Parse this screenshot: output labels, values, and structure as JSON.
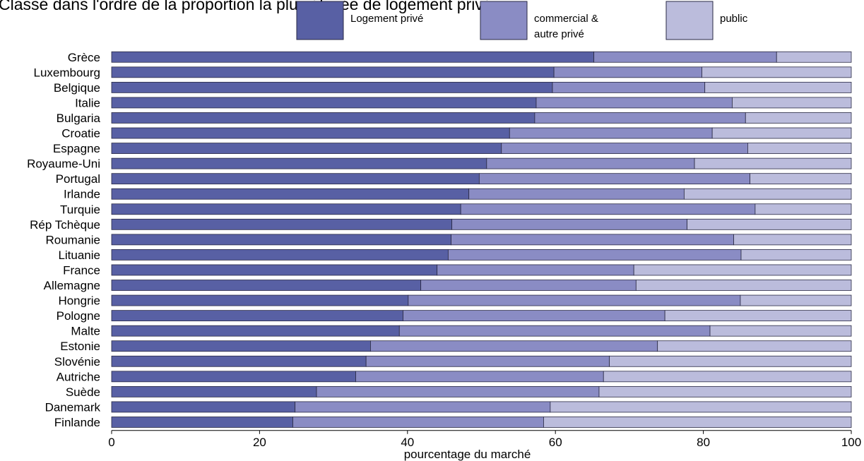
{
  "chart_data": {
    "type": "bar",
    "orientation": "horizontal",
    "stacked": true,
    "title": "Classé dans l'ordre de la proportion la plus élevée de logement privé",
    "xlabel": "pourcentage du marché",
    "ylabel": "",
    "xlim": [
      0,
      100
    ],
    "xticks": [
      "0",
      "20",
      "40",
      "60",
      "80",
      "100"
    ],
    "grid": false,
    "legend_placement": "top",
    "categories": [
      "Grèce",
      "Luxembourg",
      "Belgique",
      "Italie",
      "Bulgaria",
      "Croatie",
      "Espagne",
      "Royaume-Uni",
      "Portugal",
      "Irlande",
      "Turquie",
      "Rép Tchèque",
      "Roumanie",
      "Lituanie",
      "France",
      "Allemagne",
      "Hongrie",
      "Pologne",
      "Malte",
      "Estonie",
      "Slovénie",
      "Autriche",
      "Suède",
      "Danemark",
      "Finlande"
    ],
    "series": [
      {
        "name": "Logement privé",
        "color": "#5860a4",
        "values": [
          65.2,
          59.8,
          59.6,
          57.4,
          57.2,
          53.8,
          52.7,
          50.7,
          49.7,
          48.3,
          47.2,
          46.0,
          45.9,
          45.5,
          44.0,
          41.8,
          40.1,
          39.4,
          38.9,
          35.0,
          34.4,
          33.0,
          27.7,
          24.8,
          24.5
        ]
      },
      {
        "name": "commercial & autre privé",
        "color": "#8a8cc4",
        "values": [
          24.7,
          20.0,
          20.6,
          26.5,
          28.5,
          27.4,
          33.3,
          28.1,
          36.6,
          29.1,
          39.8,
          31.8,
          38.2,
          39.6,
          26.6,
          29.1,
          44.9,
          35.4,
          42.0,
          38.8,
          32.9,
          33.5,
          38.2,
          34.5,
          33.9
        ]
      },
      {
        "name": "public",
        "color": "#bbbcdc",
        "values": [
          10.1,
          20.2,
          19.8,
          16.1,
          14.3,
          18.8,
          14.0,
          21.2,
          13.7,
          22.6,
          13.0,
          22.2,
          15.9,
          14.9,
          29.4,
          29.1,
          15.0,
          25.2,
          19.1,
          26.2,
          32.7,
          33.5,
          34.1,
          40.7,
          41.6
        ]
      }
    ]
  }
}
